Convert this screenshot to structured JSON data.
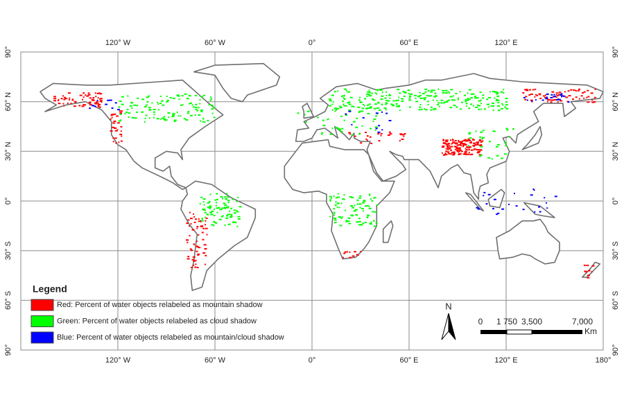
{
  "map": {
    "top_labels": [
      "120° W",
      "60° W",
      "0°",
      "60° E",
      "120° E"
    ],
    "bottom_labels": [
      "120° W",
      "60° W",
      "0°",
      "60° E",
      "120° E",
      "180°"
    ],
    "left_labels": [
      "90°",
      "60° N",
      "30° N",
      "0°",
      "30° S",
      "60° S",
      "90°"
    ],
    "right_labels": [
      "90°",
      "60° N",
      "30° N",
      "0°",
      "30° S",
      "60° S",
      "90°"
    ]
  },
  "legend": {
    "title": "Legend",
    "items": [
      {
        "label": "Red: Percent of water objects relabeled as mountain shadow",
        "color": "#ff0000"
      },
      {
        "label": "Green: Percent of water objects relabeled as cloud shadow",
        "color": "#00ff00"
      },
      {
        "label": "Blue:   Percent of water objects relabeled as mountain/cloud  shadow",
        "color": "#0000ff"
      }
    ]
  },
  "north_arrow": "N",
  "scale_bar": {
    "labels": [
      "0",
      "1 750",
      "3,500",
      "7,000"
    ],
    "unit": "Km"
  }
}
